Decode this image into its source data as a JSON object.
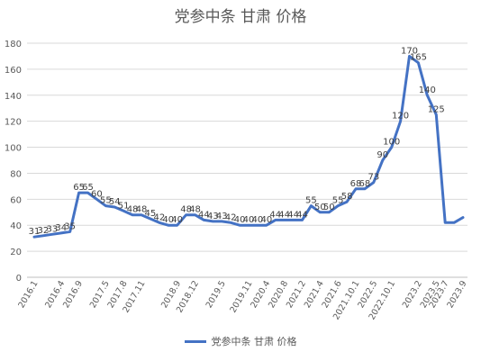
{
  "chart_data": {
    "type": "line",
    "title": "党参中条 甘肃 价格",
    "xlabel": "",
    "ylabel": "",
    "ylim": [
      0,
      180
    ],
    "yticks": [
      0,
      20,
      40,
      60,
      80,
      100,
      120,
      140,
      160,
      180
    ],
    "grid": true,
    "legend_position": "bottom",
    "x_tick_labels": [
      "2016.1",
      "2016.4",
      "2016.9",
      "2017.5",
      "2017.8",
      "2017.11",
      "2018.9",
      "2018.12",
      "2019.5",
      "2019.11",
      "2020.4",
      "2020.8",
      "2021.2",
      "2021.4",
      "2021.6",
      "2021.10.1",
      "2022.5",
      "2022.10.1",
      "2023.2",
      "2023.5",
      "2023.7",
      "2023.9"
    ],
    "x": [
      "2016.1",
      "2016.2",
      "2016.3",
      "2016.4",
      "2016.6",
      "2016.9",
      "2017.1",
      "2017.3",
      "2017.5",
      "2017.6",
      "2017.8",
      "2017.10",
      "2017.11",
      "2018.3",
      "2018.6",
      "2018.8",
      "2018.9",
      "2018.10",
      "2018.12",
      "2019.1",
      "2019.3",
      "2019.5",
      "2019.7",
      "2019.9",
      "2019.11",
      "2020.1",
      "2020.4",
      "2020.6",
      "2020.8",
      "2020.11",
      "2021.2",
      "2021.3",
      "2021.4",
      "2021.5",
      "2021.6",
      "2021.8",
      "2021.10.1",
      "2022.1",
      "2022.5",
      "2022.7",
      "2022.10.1",
      "2022.11",
      "2023.1",
      "2023.2",
      "2023.3",
      "2023.5",
      "2023.7",
      "2023.8",
      "2023.9"
    ],
    "series": [
      {
        "name": "党参中条 甘肃 价格",
        "color": "#4472C4",
        "values": [
          31,
          32,
          33,
          34,
          35,
          65,
          65,
          60,
          55,
          54,
          51,
          48,
          48,
          45,
          42,
          40,
          40,
          48,
          48,
          44,
          43,
          43,
          42,
          40,
          40,
          40,
          40,
          44,
          44,
          44,
          44,
          55,
          50,
          50,
          55,
          58,
          68,
          68,
          73,
          90,
          100,
          120,
          170,
          165,
          140,
          125,
          42,
          42,
          46
        ],
        "value_labels": [
          "31",
          "32",
          "33",
          "34",
          "35",
          "65",
          "65",
          "60",
          "55",
          "54",
          "51",
          "48",
          "48",
          "45",
          "42",
          "40",
          "40",
          "48",
          "48",
          "44",
          "43",
          "43",
          "42",
          "40",
          "40",
          "40",
          "40",
          "44",
          "44",
          "44",
          "44",
          "55",
          "50",
          "50",
          "55",
          "58",
          "68",
          "68",
          "73",
          "90",
          "100",
          "120",
          "170",
          "165",
          "140",
          "125",
          "",
          "",
          ""
        ]
      }
    ]
  }
}
